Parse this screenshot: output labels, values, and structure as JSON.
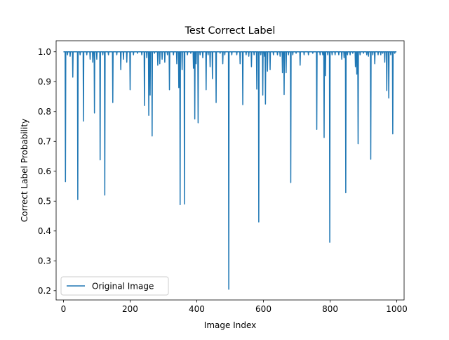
{
  "chart_data": {
    "type": "line",
    "title": "Test Correct Label",
    "xlabel": "Image Index",
    "ylabel": "Correct Label Probability",
    "xlim": [
      -22,
      1022
    ],
    "ylim": [
      0.169,
      1.037
    ],
    "xticks": [
      0,
      200,
      400,
      600,
      800,
      1000
    ],
    "yticks": [
      0.2,
      0.3,
      0.4,
      0.5,
      0.6,
      0.7,
      0.8,
      0.9,
      1.0
    ],
    "xtick_labels": [
      "0",
      "200",
      "400",
      "600",
      "800",
      "1000"
    ],
    "ytick_labels": [
      "0.2",
      "0.3",
      "0.4",
      "0.5",
      "0.6",
      "0.7",
      "0.8",
      "0.9",
      "1.0"
    ],
    "grid": false,
    "legend": {
      "location": "lower left",
      "entries": [
        "Original Image"
      ]
    },
    "series": [
      {
        "name": "Original Image",
        "color": "#1f77b4",
        "baseline": 1.0,
        "n_points": 1000,
        "dips": [
          [
            6,
            0.565
          ],
          [
            12,
            0.99
          ],
          [
            20,
            0.985
          ],
          [
            28,
            0.915
          ],
          [
            43,
            0.505
          ],
          [
            50,
            0.99
          ],
          [
            60,
            0.768
          ],
          [
            70,
            0.99
          ],
          [
            80,
            0.975
          ],
          [
            88,
            0.965
          ],
          [
            93,
            0.795
          ],
          [
            100,
            0.975
          ],
          [
            110,
            0.638
          ],
          [
            118,
            0.99
          ],
          [
            124,
            0.52
          ],
          [
            135,
            0.99
          ],
          [
            148,
            0.83
          ],
          [
            160,
            0.99
          ],
          [
            172,
            0.94
          ],
          [
            180,
            0.975
          ],
          [
            190,
            0.965
          ],
          [
            200,
            0.873
          ],
          [
            210,
            0.99
          ],
          [
            222,
            0.995
          ],
          [
            235,
            0.99
          ],
          [
            243,
            0.82
          ],
          [
            250,
            0.98
          ],
          [
            256,
            0.787
          ],
          [
            260,
            0.855
          ],
          [
            266,
            0.718
          ],
          [
            273,
            0.995
          ],
          [
            283,
            0.955
          ],
          [
            289,
            0.96
          ],
          [
            296,
            0.975
          ],
          [
            304,
            0.965
          ],
          [
            312,
            0.99
          ],
          [
            318,
            0.873
          ],
          [
            330,
            0.99
          ],
          [
            340,
            0.96
          ],
          [
            346,
            0.88
          ],
          [
            350,
            0.488
          ],
          [
            356,
            0.94
          ],
          [
            363,
            0.49
          ],
          [
            372,
            0.99
          ],
          [
            382,
            0.995
          ],
          [
            390,
            0.945
          ],
          [
            394,
            0.775
          ],
          [
            398,
            0.96
          ],
          [
            404,
            0.762
          ],
          [
            410,
            0.99
          ],
          [
            418,
            0.98
          ],
          [
            428,
            0.873
          ],
          [
            434,
            0.99
          ],
          [
            440,
            0.95
          ],
          [
            447,
            0.91
          ],
          [
            458,
            0.83
          ],
          [
            470,
            0.995
          ],
          [
            478,
            0.96
          ],
          [
            484,
            0.99
          ],
          [
            496,
            0.205
          ],
          [
            505,
            0.99
          ],
          [
            520,
            0.99
          ],
          [
            530,
            0.96
          ],
          [
            538,
            0.823
          ],
          [
            548,
            0.99
          ],
          [
            556,
            0.985
          ],
          [
            564,
            0.95
          ],
          [
            572,
            0.99
          ],
          [
            580,
            0.875
          ],
          [
            586,
            0.43
          ],
          [
            592,
            0.99
          ],
          [
            598,
            0.855
          ],
          [
            603,
            0.985
          ],
          [
            606,
            0.825
          ],
          [
            612,
            0.935
          ],
          [
            620,
            0.94
          ],
          [
            630,
            0.99
          ],
          [
            642,
            0.99
          ],
          [
            650,
            0.985
          ],
          [
            657,
            0.93
          ],
          [
            662,
            0.857
          ],
          [
            668,
            0.93
          ],
          [
            675,
            0.99
          ],
          [
            682,
            0.562
          ],
          [
            688,
            0.99
          ],
          [
            698,
            0.995
          ],
          [
            710,
            0.955
          ],
          [
            722,
            0.99
          ],
          [
            735,
            0.99
          ],
          [
            748,
            0.995
          ],
          [
            760,
            0.74
          ],
          [
            770,
            0.99
          ],
          [
            778,
            0.99
          ],
          [
            782,
            0.713
          ],
          [
            786,
            0.92
          ],
          [
            793,
            0.99
          ],
          [
            799,
            0.362
          ],
          [
            806,
            0.99
          ],
          [
            815,
            0.99
          ],
          [
            826,
            0.99
          ],
          [
            835,
            0.975
          ],
          [
            842,
            0.98
          ],
          [
            847,
            0.528
          ],
          [
            852,
            0.99
          ],
          [
            860,
            0.99
          ],
          [
            868,
            0.995
          ],
          [
            876,
            0.95
          ],
          [
            880,
            0.925
          ],
          [
            884,
            0.692
          ],
          [
            890,
            0.99
          ],
          [
            900,
            0.995
          ],
          [
            910,
            0.99
          ],
          [
            915,
            0.985
          ],
          [
            922,
            0.64
          ],
          [
            928,
            0.99
          ],
          [
            934,
            0.96
          ],
          [
            944,
            0.99
          ],
          [
            952,
            0.99
          ],
          [
            958,
            0.995
          ],
          [
            964,
            0.965
          ],
          [
            970,
            0.87
          ],
          [
            976,
            0.845
          ],
          [
            982,
            0.99
          ],
          [
            988,
            0.725
          ],
          [
            994,
            0.995
          ]
        ]
      }
    ]
  }
}
